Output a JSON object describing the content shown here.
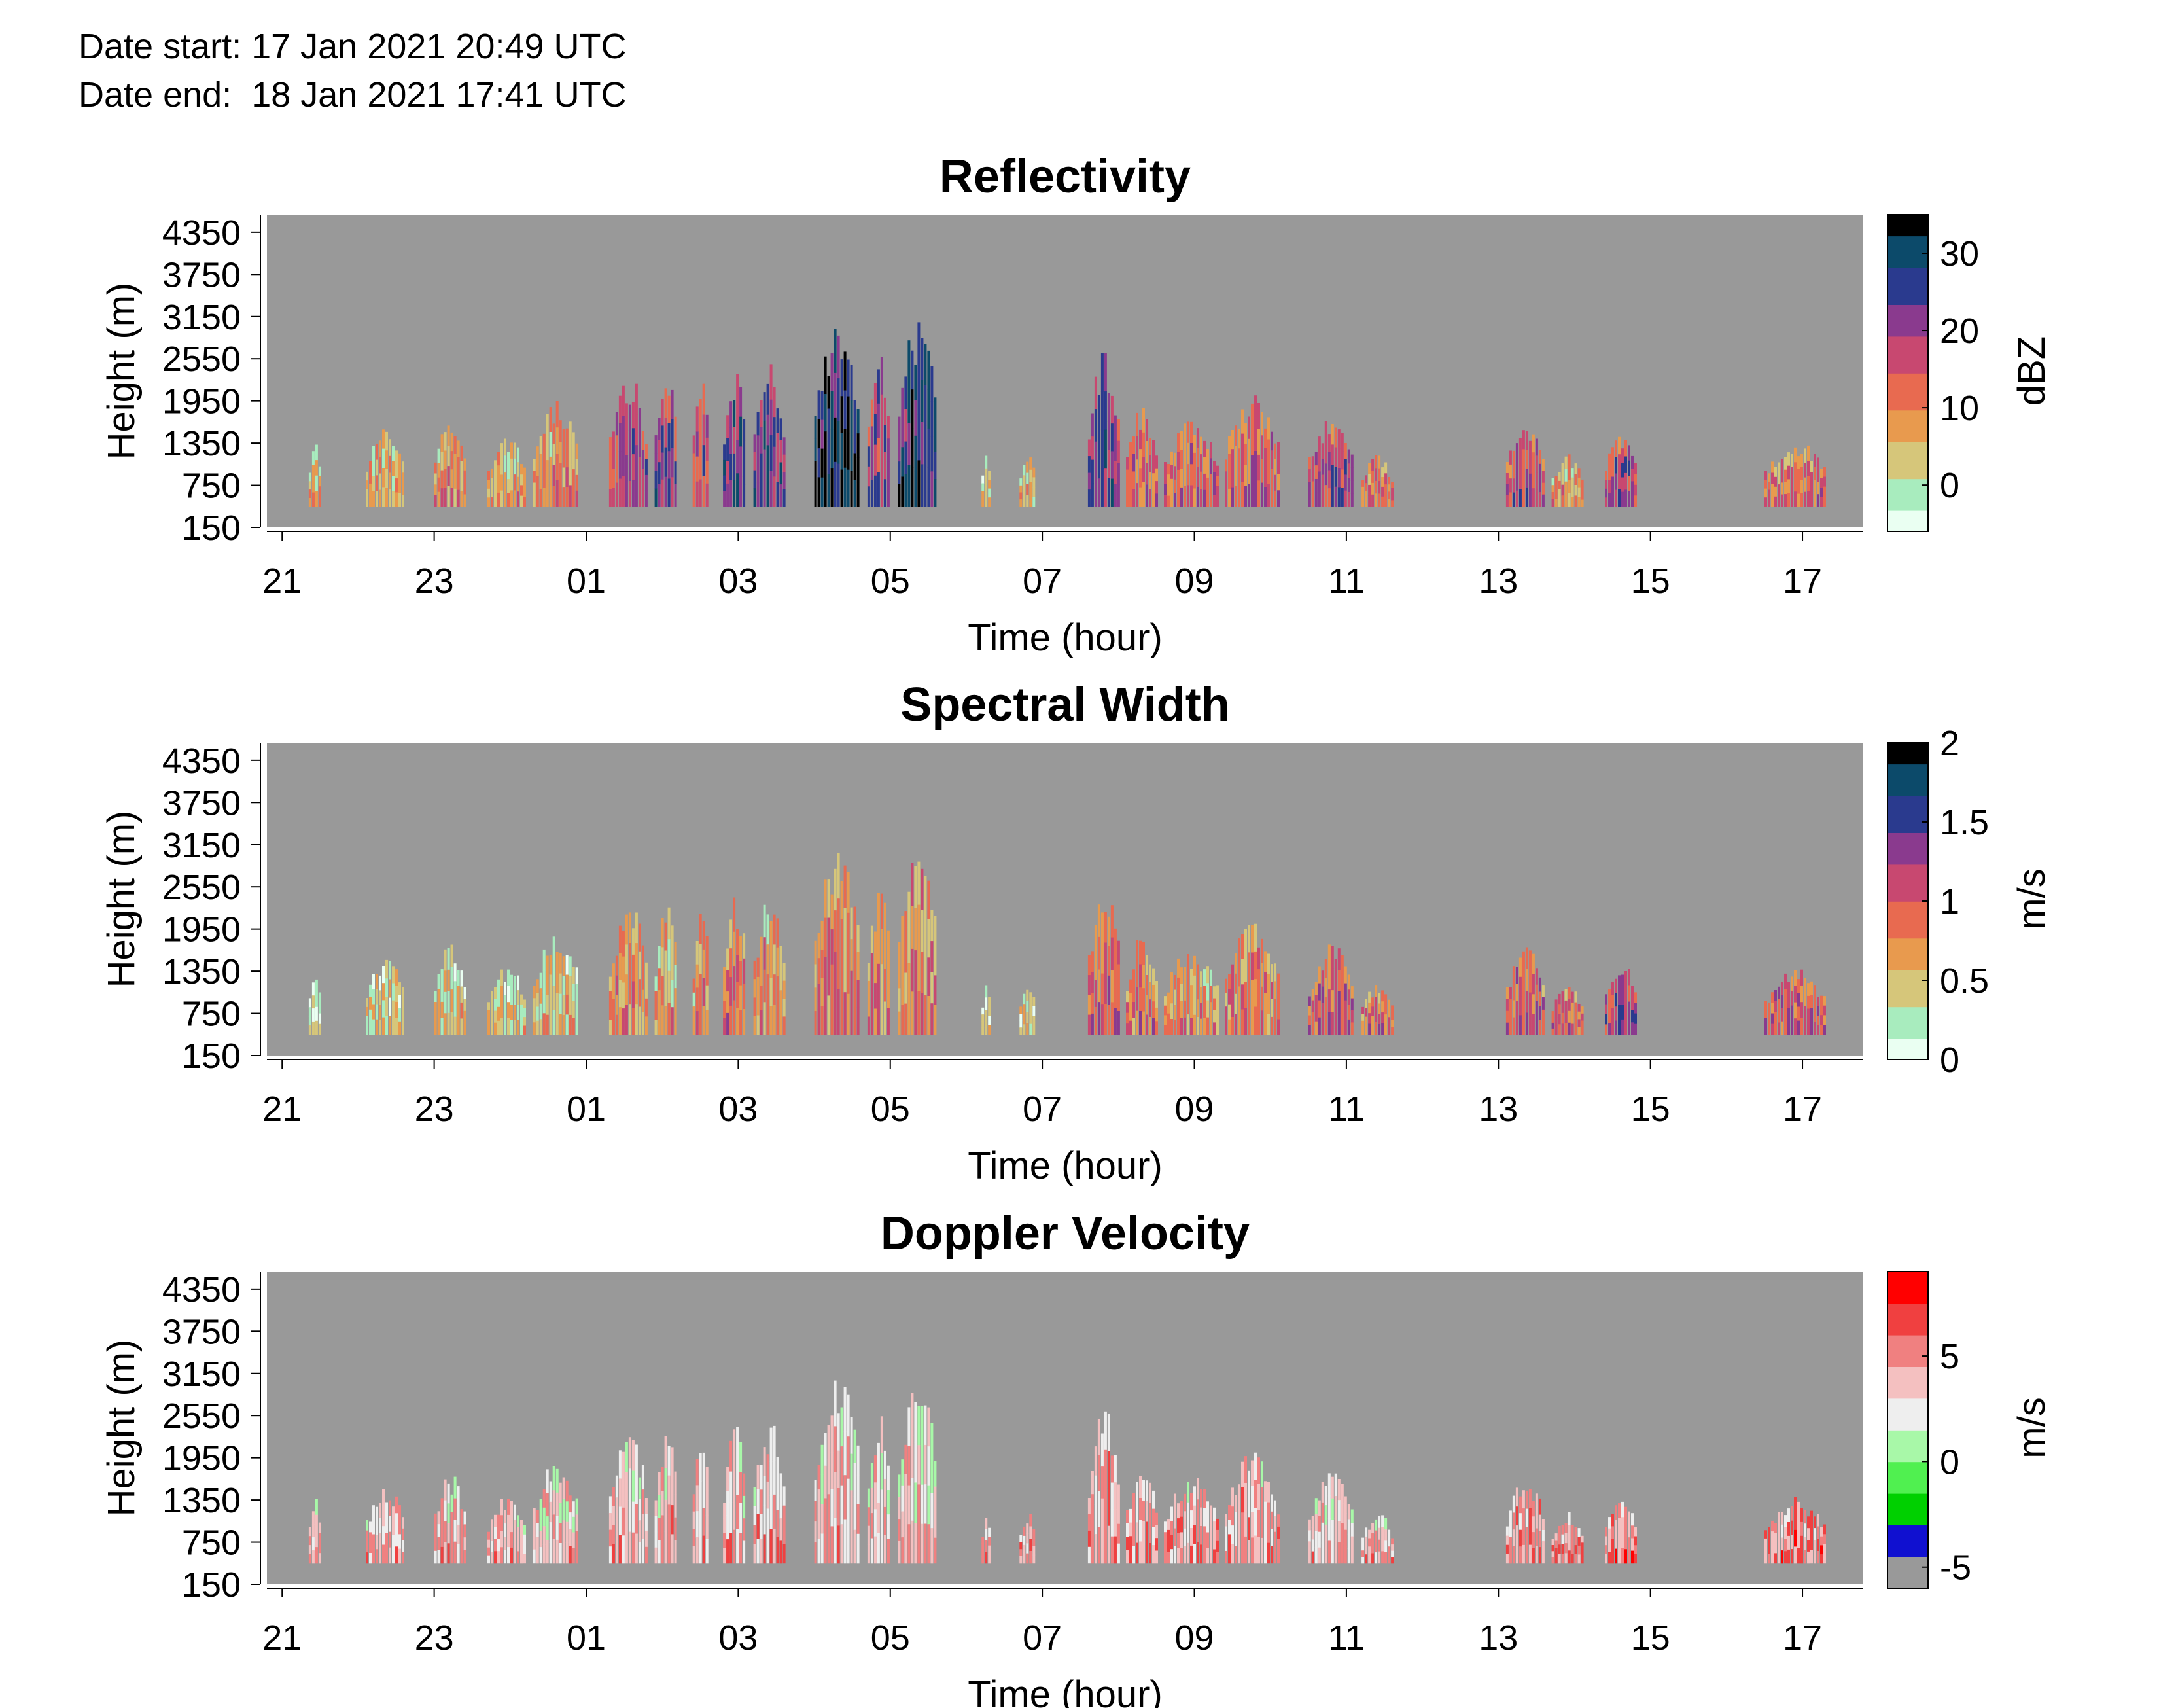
{
  "header": {
    "date_start_label": "Date start:",
    "date_start_value": "17 Jan 2021 20:49 UTC",
    "date_end_label": "Date end:",
    "date_end_value": "18 Jan 2021 17:41 UTC"
  },
  "colors": {
    "no_data": "#999999",
    "reflectivity_cmap": [
      "#eafff2",
      "#a8ecbe",
      "#d6c67a",
      "#e89a4e",
      "#e86a50",
      "#c84870",
      "#8a3a8e",
      "#2a3a8e",
      "#0c4a6a",
      "#000000"
    ],
    "spectral_cmap": [
      "#eafff2",
      "#a8ecbe",
      "#d6c67a",
      "#e89a4e",
      "#e86a50",
      "#c84870",
      "#8a3a8e",
      "#2a3a8e",
      "#0c4a6a",
      "#000000"
    ],
    "velocity_cmap": [
      "#999999",
      "#1010d0",
      "#00d000",
      "#50f050",
      "#a8f8a8",
      "#eeeeee",
      "#f4c0c0",
      "#f08080",
      "#f04040",
      "#ff0000"
    ]
  },
  "chart_data": [
    {
      "type": "heatmap",
      "title": "Reflectivity",
      "xlabel": "Time (hour)",
      "ylabel": "Height (m)",
      "x_ticks": [
        "21",
        "23",
        "01",
        "03",
        "05",
        "07",
        "09",
        "11",
        "13",
        "15",
        "17"
      ],
      "y_ticks": [
        "150",
        "750",
        "1350",
        "1950",
        "2550",
        "3150",
        "3750",
        "4350"
      ],
      "ylim": [
        150,
        4600
      ],
      "colorbar": {
        "label": "dBZ",
        "ticks": [
          "0",
          "10",
          "20",
          "30"
        ],
        "range": [
          -6,
          35
        ]
      },
      "echo_columns": [
        {
          "start_hour": 21.35,
          "end_hour": 21.5,
          "top_m": 1400,
          "level": 0.2
        },
        {
          "start_hour": 22.1,
          "end_hour": 22.6,
          "top_m": 1600,
          "level": 0.25
        },
        {
          "start_hour": 23.0,
          "end_hour": 23.4,
          "top_m": 1750,
          "level": 0.3
        },
        {
          "start_hour": 23.7,
          "end_hour": 24.2,
          "top_m": 1450,
          "level": 0.25
        },
        {
          "start_hour": 24.3,
          "end_hour": 24.9,
          "top_m": 1950,
          "level": 0.3
        },
        {
          "start_hour": 25.3,
          "end_hour": 25.8,
          "top_m": 2350,
          "level": 0.55
        },
        {
          "start_hour": 25.9,
          "end_hour": 26.2,
          "top_m": 2300,
          "level": 0.6
        },
        {
          "start_hour": 26.4,
          "end_hour": 26.6,
          "top_m": 2350,
          "level": 0.55
        },
        {
          "start_hour": 26.8,
          "end_hour": 27.1,
          "top_m": 2450,
          "level": 0.7
        },
        {
          "start_hour": 27.2,
          "end_hour": 27.6,
          "top_m": 2500,
          "level": 0.65
        },
        {
          "start_hour": 28.0,
          "end_hour": 28.6,
          "top_m": 3150,
          "level": 0.85
        },
        {
          "start_hour": 28.7,
          "end_hour": 29.0,
          "top_m": 2600,
          "level": 0.6
        },
        {
          "start_hour": 29.1,
          "end_hour": 29.6,
          "top_m": 3150,
          "level": 0.75
        },
        {
          "start_hour": 30.2,
          "end_hour": 30.3,
          "top_m": 1300,
          "level": 0.2
        },
        {
          "start_hour": 30.7,
          "end_hour": 30.9,
          "top_m": 1200,
          "level": 0.2
        },
        {
          "start_hour": 31.6,
          "end_hour": 32.0,
          "top_m": 2700,
          "level": 0.65
        },
        {
          "start_hour": 32.1,
          "end_hour": 32.5,
          "top_m": 1900,
          "level": 0.45
        },
        {
          "start_hour": 32.6,
          "end_hour": 33.3,
          "top_m": 1700,
          "level": 0.45
        },
        {
          "start_hour": 33.4,
          "end_hour": 34.1,
          "top_m": 2050,
          "level": 0.45
        },
        {
          "start_hour": 34.5,
          "end_hour": 35.1,
          "top_m": 1750,
          "level": 0.55
        },
        {
          "start_hour": 35.2,
          "end_hour": 35.6,
          "top_m": 1200,
          "level": 0.4
        },
        {
          "start_hour": 37.1,
          "end_hour": 37.6,
          "top_m": 1700,
          "level": 0.5
        },
        {
          "start_hour": 37.7,
          "end_hour": 38.1,
          "top_m": 1200,
          "level": 0.3
        },
        {
          "start_hour": 38.4,
          "end_hour": 38.8,
          "top_m": 1550,
          "level": 0.55
        },
        {
          "start_hour": 40.5,
          "end_hour": 41.3,
          "top_m": 1400,
          "level": 0.4
        }
      ]
    },
    {
      "type": "heatmap",
      "title": "Spectral Width",
      "xlabel": "Time (hour)",
      "ylabel": "Height (m)",
      "x_ticks": [
        "21",
        "23",
        "01",
        "03",
        "05",
        "07",
        "09",
        "11",
        "13",
        "15",
        "17"
      ],
      "y_ticks": [
        "150",
        "750",
        "1350",
        "1950",
        "2550",
        "3150",
        "3750",
        "4350"
      ],
      "ylim": [
        150,
        4600
      ],
      "colorbar": {
        "label": "m/s",
        "ticks": [
          "0",
          "0.5",
          "1",
          "1.5",
          "2"
        ],
        "range": [
          0,
          2
        ]
      },
      "echo_columns": [
        {
          "start_hour": 21.35,
          "end_hour": 21.5,
          "top_m": 1400,
          "level": 0.12
        },
        {
          "start_hour": 22.1,
          "end_hour": 22.6,
          "top_m": 1600,
          "level": 0.15
        },
        {
          "start_hour": 23.0,
          "end_hour": 23.4,
          "top_m": 1750,
          "level": 0.18
        },
        {
          "start_hour": 23.7,
          "end_hour": 24.2,
          "top_m": 1450,
          "level": 0.15
        },
        {
          "start_hour": 24.3,
          "end_hour": 24.9,
          "top_m": 1950,
          "level": 0.2
        },
        {
          "start_hour": 25.3,
          "end_hour": 25.8,
          "top_m": 2350,
          "level": 0.3
        },
        {
          "start_hour": 25.9,
          "end_hour": 26.2,
          "top_m": 2300,
          "level": 0.28
        },
        {
          "start_hour": 26.4,
          "end_hour": 26.6,
          "top_m": 2350,
          "level": 0.3
        },
        {
          "start_hour": 26.8,
          "end_hour": 27.1,
          "top_m": 2450,
          "level": 0.38
        },
        {
          "start_hour": 27.2,
          "end_hour": 27.6,
          "top_m": 2500,
          "level": 0.32
        },
        {
          "start_hour": 28.0,
          "end_hour": 28.6,
          "top_m": 3150,
          "level": 0.35
        },
        {
          "start_hour": 28.7,
          "end_hour": 29.0,
          "top_m": 2600,
          "level": 0.35
        },
        {
          "start_hour": 29.1,
          "end_hour": 29.6,
          "top_m": 3150,
          "level": 0.35
        },
        {
          "start_hour": 30.2,
          "end_hour": 30.3,
          "top_m": 1300,
          "level": 0.12
        },
        {
          "start_hour": 30.7,
          "end_hour": 30.9,
          "top_m": 1200,
          "level": 0.12
        },
        {
          "start_hour": 31.6,
          "end_hour": 32.0,
          "top_m": 2700,
          "level": 0.45
        },
        {
          "start_hour": 32.1,
          "end_hour": 32.5,
          "top_m": 1900,
          "level": 0.35
        },
        {
          "start_hour": 32.6,
          "end_hour": 33.3,
          "top_m": 1700,
          "level": 0.3
        },
        {
          "start_hour": 33.4,
          "end_hour": 34.1,
          "top_m": 2050,
          "level": 0.35
        },
        {
          "start_hour": 34.5,
          "end_hour": 35.1,
          "top_m": 1750,
          "level": 0.45
        },
        {
          "start_hour": 35.2,
          "end_hour": 35.6,
          "top_m": 1200,
          "level": 0.38
        },
        {
          "start_hour": 37.1,
          "end_hour": 37.6,
          "top_m": 1700,
          "level": 0.45
        },
        {
          "start_hour": 37.7,
          "end_hour": 38.1,
          "top_m": 1200,
          "level": 0.4
        },
        {
          "start_hour": 38.4,
          "end_hour": 38.8,
          "top_m": 1550,
          "level": 0.55
        },
        {
          "start_hour": 40.5,
          "end_hour": 41.3,
          "top_m": 1400,
          "level": 0.45
        }
      ]
    },
    {
      "type": "heatmap",
      "title": "Doppler Velocity",
      "xlabel": "Time (hour)",
      "ylabel": "Height (m)",
      "x_ticks": [
        "21",
        "23",
        "01",
        "03",
        "05",
        "07",
        "09",
        "11",
        "13",
        "15",
        "17"
      ],
      "y_ticks": [
        "150",
        "750",
        "1350",
        "1950",
        "2550",
        "3150",
        "3750",
        "4350"
      ],
      "ylim": [
        150,
        4600
      ],
      "colorbar": {
        "label": "m/s",
        "ticks": [
          "-5",
          "0",
          "5"
        ],
        "range": [
          -6,
          9
        ]
      },
      "echo_columns": [
        {
          "start_hour": 21.35,
          "end_hour": 21.5,
          "top_m": 1400,
          "level": 0.62
        },
        {
          "start_hour": 22.1,
          "end_hour": 22.6,
          "top_m": 1600,
          "level": 0.62
        },
        {
          "start_hour": 23.0,
          "end_hour": 23.4,
          "top_m": 1750,
          "level": 0.62
        },
        {
          "start_hour": 23.7,
          "end_hour": 24.2,
          "top_m": 1450,
          "level": 0.6
        },
        {
          "start_hour": 24.3,
          "end_hour": 24.9,
          "top_m": 1950,
          "level": 0.6
        },
        {
          "start_hour": 25.3,
          "end_hour": 25.8,
          "top_m": 2350,
          "level": 0.6
        },
        {
          "start_hour": 25.9,
          "end_hour": 26.2,
          "top_m": 2300,
          "level": 0.62
        },
        {
          "start_hour": 26.4,
          "end_hour": 26.6,
          "top_m": 2350,
          "level": 0.62
        },
        {
          "start_hour": 26.8,
          "end_hour": 27.1,
          "top_m": 2450,
          "level": 0.64
        },
        {
          "start_hour": 27.2,
          "end_hour": 27.6,
          "top_m": 2500,
          "level": 0.65
        },
        {
          "start_hour": 28.0,
          "end_hour": 28.6,
          "top_m": 3150,
          "level": 0.58
        },
        {
          "start_hour": 28.7,
          "end_hour": 29.0,
          "top_m": 2600,
          "level": 0.6
        },
        {
          "start_hour": 29.1,
          "end_hour": 29.6,
          "top_m": 3150,
          "level": 0.58
        },
        {
          "start_hour": 30.2,
          "end_hour": 30.3,
          "top_m": 1300,
          "level": 0.66
        },
        {
          "start_hour": 30.7,
          "end_hour": 30.9,
          "top_m": 1200,
          "level": 0.66
        },
        {
          "start_hour": 31.6,
          "end_hour": 32.0,
          "top_m": 2700,
          "level": 0.66
        },
        {
          "start_hour": 32.1,
          "end_hour": 32.5,
          "top_m": 1900,
          "level": 0.66
        },
        {
          "start_hour": 32.6,
          "end_hour": 33.3,
          "top_m": 1700,
          "level": 0.66
        },
        {
          "start_hour": 33.4,
          "end_hour": 34.1,
          "top_m": 2050,
          "level": 0.65
        },
        {
          "start_hour": 34.5,
          "end_hour": 35.1,
          "top_m": 1750,
          "level": 0.6
        },
        {
          "start_hour": 35.2,
          "end_hour": 35.6,
          "top_m": 1200,
          "level": 0.62
        },
        {
          "start_hour": 37.1,
          "end_hour": 37.6,
          "top_m": 1700,
          "level": 0.7
        },
        {
          "start_hour": 37.7,
          "end_hour": 38.1,
          "top_m": 1200,
          "level": 0.7
        },
        {
          "start_hour": 38.4,
          "end_hour": 38.8,
          "top_m": 1550,
          "level": 0.72
        },
        {
          "start_hour": 40.5,
          "end_hour": 41.3,
          "top_m": 1400,
          "level": 0.72
        }
      ]
    }
  ]
}
